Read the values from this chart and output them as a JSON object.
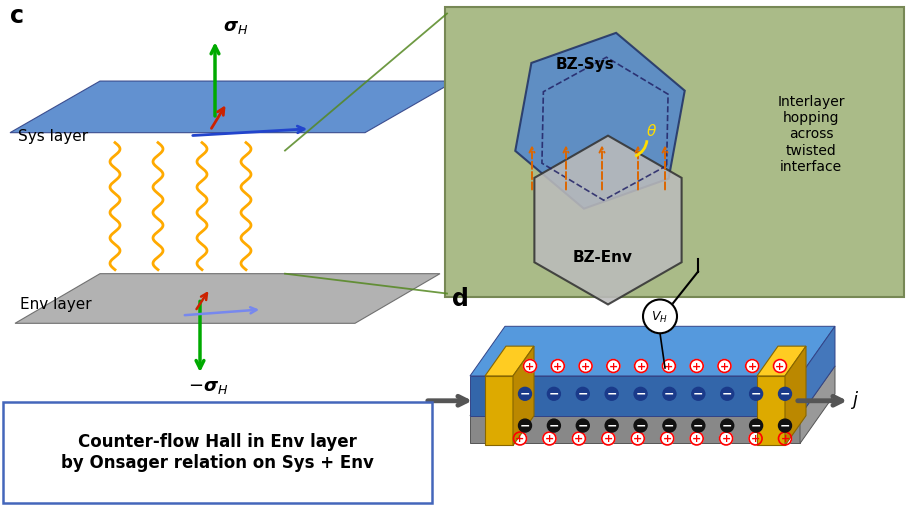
{
  "panel_c_label": "c",
  "panel_d_label": "d",
  "sys_layer_label": "Sys layer",
  "env_layer_label": "Env layer",
  "bz_sys_label": "BZ-Sys",
  "bz_env_label": "BZ-Env",
  "theta_label": "θ",
  "interlayer_label": "Interlayer\nhopping\nacross\ntwisted\ninterface",
  "caption": "Counter-flow Hall in Env layer\nby Onsager relation on Sys + Env",
  "j_label": "j",
  "vh_label": "V_H",
  "blue_layer_color": "#5588CC",
  "blue_layer_dark": "#3366AA",
  "gray_layer_color": "#AAAAAA",
  "green_bg_color": "#AABB88",
  "gold_color": "#DDAA00",
  "gold_dark": "#BB8800",
  "orange_arrow_color": "#DD6600",
  "yellow_wavy_color": "#FFAA00",
  "bg_color": "#FFFFFF",
  "green_arrow_color": "#00AA00",
  "red_arrow_color": "#CC2200",
  "blue_arrow_color": "#2244CC"
}
